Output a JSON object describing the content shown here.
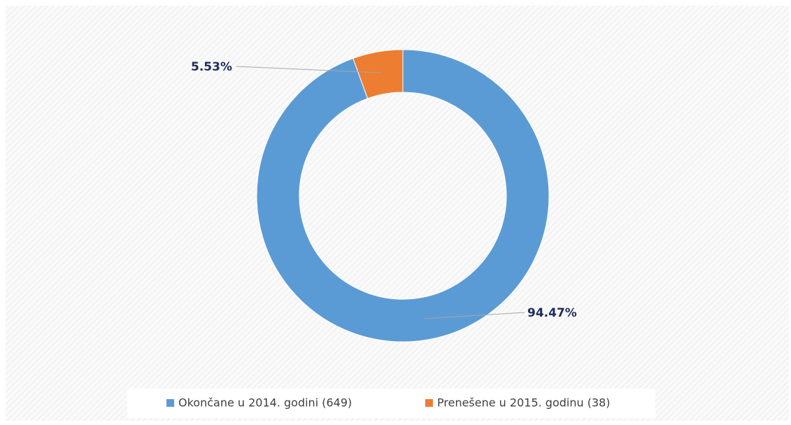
{
  "chart_data": {
    "type": "pie",
    "categories": [
      "Okončane u 2014. godini (649)",
      "Prenešene u 2015. godinu (38)"
    ],
    "values": [
      94.47,
      5.53
    ],
    "value_labels": [
      "94.47%",
      "5.53%"
    ],
    "colors": [
      "#5b9bd5",
      "#ed7d31"
    ],
    "legend": "bottom"
  }
}
